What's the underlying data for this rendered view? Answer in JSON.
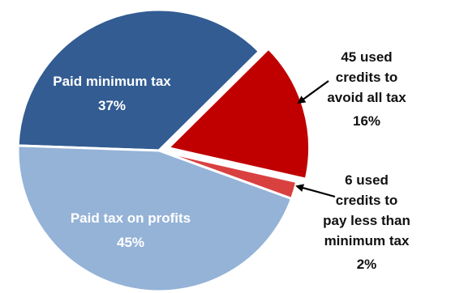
{
  "chart_data": {
    "type": "pie",
    "title": "",
    "slices": [
      {
        "name": "Paid minimum tax",
        "value": 37,
        "value_label": "37%",
        "color": "#325c92",
        "label_color": "#ffffff"
      },
      {
        "name": "45 used credits to avoid all tax",
        "value": 16,
        "value_label": "16%",
        "color": "#c00000",
        "label_color": "#111111"
      },
      {
        "name": "6 used credits to pay less than minimum tax",
        "value": 2,
        "value_label": "2%",
        "color": "#d94141",
        "label_color": "#111111"
      },
      {
        "name": "Paid tax on profits",
        "value": 45,
        "value_label": "45%",
        "color": "#95b3d7",
        "label_color": "#ffffff"
      }
    ],
    "exploded_slice": "45 used credits to avoid all tax",
    "legend": "none"
  },
  "labels": {
    "paid_minimum": {
      "line1": "Paid minimum tax",
      "pct": "37%"
    },
    "avoid_all": {
      "line1": "45 used",
      "line2": "credits to",
      "line3": "avoid all tax",
      "pct": "16%"
    },
    "pay_less": {
      "line1": "6 used",
      "line2": "credits to",
      "line3": "pay less than",
      "line4": "minimum tax",
      "pct": "2%"
    },
    "paid_profits": {
      "line1": "Paid tax on profits",
      "pct": "45%"
    }
  }
}
